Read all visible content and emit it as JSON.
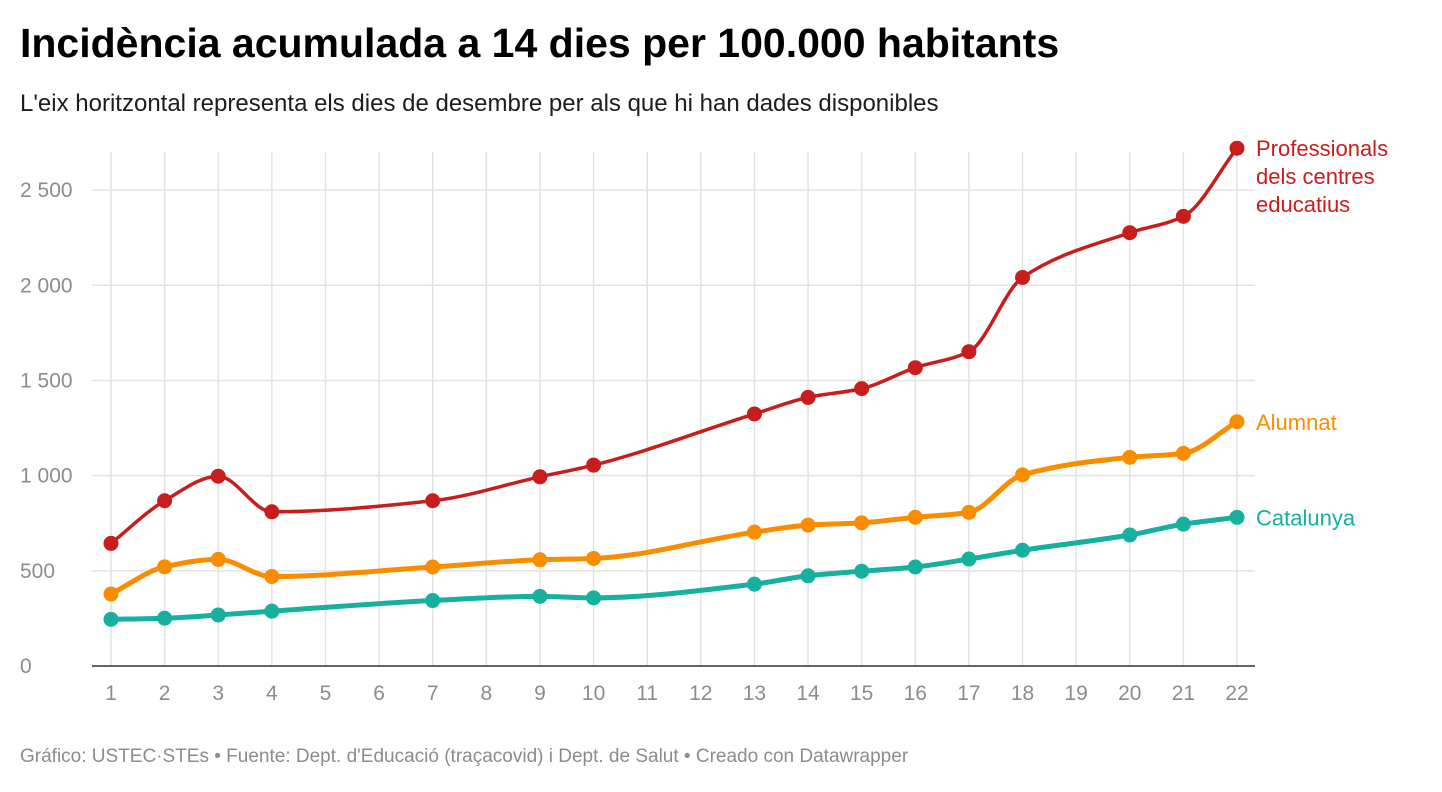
{
  "title": "Incidència acumulada a 14 dies per 100.000 habitants",
  "subtitle": "L'eix horitzontal representa els dies de desembre per als que hi han dades disponibles",
  "footer": "Gráfico: USTEC·STEs • Fuente: Dept. d'Educació (traçacovid) i Dept. de Salut • Creado con Datawrapper",
  "chart_data": {
    "type": "line",
    "x_ticks": [
      1,
      2,
      3,
      4,
      5,
      6,
      7,
      8,
      9,
      10,
      11,
      12,
      13,
      14,
      15,
      16,
      17,
      18,
      19,
      20,
      21,
      22
    ],
    "x_tick_labels": [
      "1",
      "2",
      "3",
      "4",
      "5",
      "6",
      "7",
      "8",
      "9",
      "10",
      "11",
      "12",
      "13",
      "14",
      "15",
      "16",
      "17",
      "18",
      "19",
      "20",
      "21",
      "22"
    ],
    "xlim": [
      1,
      22
    ],
    "ylim": [
      0,
      2700
    ],
    "y_ticks": [
      0,
      500,
      1000,
      1500,
      2000,
      2500
    ],
    "y_tick_labels": [
      "0",
      "500",
      "1 000",
      "1 500",
      "2 000",
      "2 500"
    ],
    "grid": true,
    "legend": "direct labels at right end of each line",
    "series": [
      {
        "name": "Professionals dels centres educatius",
        "label_lines": [
          "Professionals",
          "dels centres",
          "educatius"
        ],
        "color": "#c71e1d",
        "x": [
          1,
          2,
          3,
          4,
          7,
          9,
          10,
          13,
          14,
          15,
          16,
          17,
          18,
          20,
          21,
          22
        ],
        "values": [
          644,
          868,
          997,
          810,
          868,
          994,
          1055,
          1324,
          1411,
          1457,
          1567,
          1651,
          2041,
          2276,
          2362,
          2720
        ]
      },
      {
        "name": "Alumnat",
        "label_lines": [
          "Alumnat"
        ],
        "color": "#fa8c00",
        "x": [
          1,
          2,
          3,
          4,
          7,
          9,
          10,
          13,
          14,
          15,
          16,
          17,
          18,
          20,
          21,
          22
        ],
        "values": [
          378,
          521,
          560,
          470,
          520,
          558,
          565,
          703,
          740,
          752,
          781,
          807,
          1004,
          1096,
          1117,
          1283
        ]
      },
      {
        "name": "Catalunya",
        "label_lines": [
          "Catalunya"
        ],
        "color": "#15b09e",
        "x": [
          1,
          2,
          3,
          4,
          7,
          9,
          10,
          13,
          14,
          15,
          16,
          17,
          18,
          20,
          21,
          22
        ],
        "values": [
          245,
          251,
          268,
          288,
          344,
          366,
          358,
          430,
          474,
          498,
          520,
          562,
          608,
          688,
          745,
          781
        ]
      }
    ]
  }
}
